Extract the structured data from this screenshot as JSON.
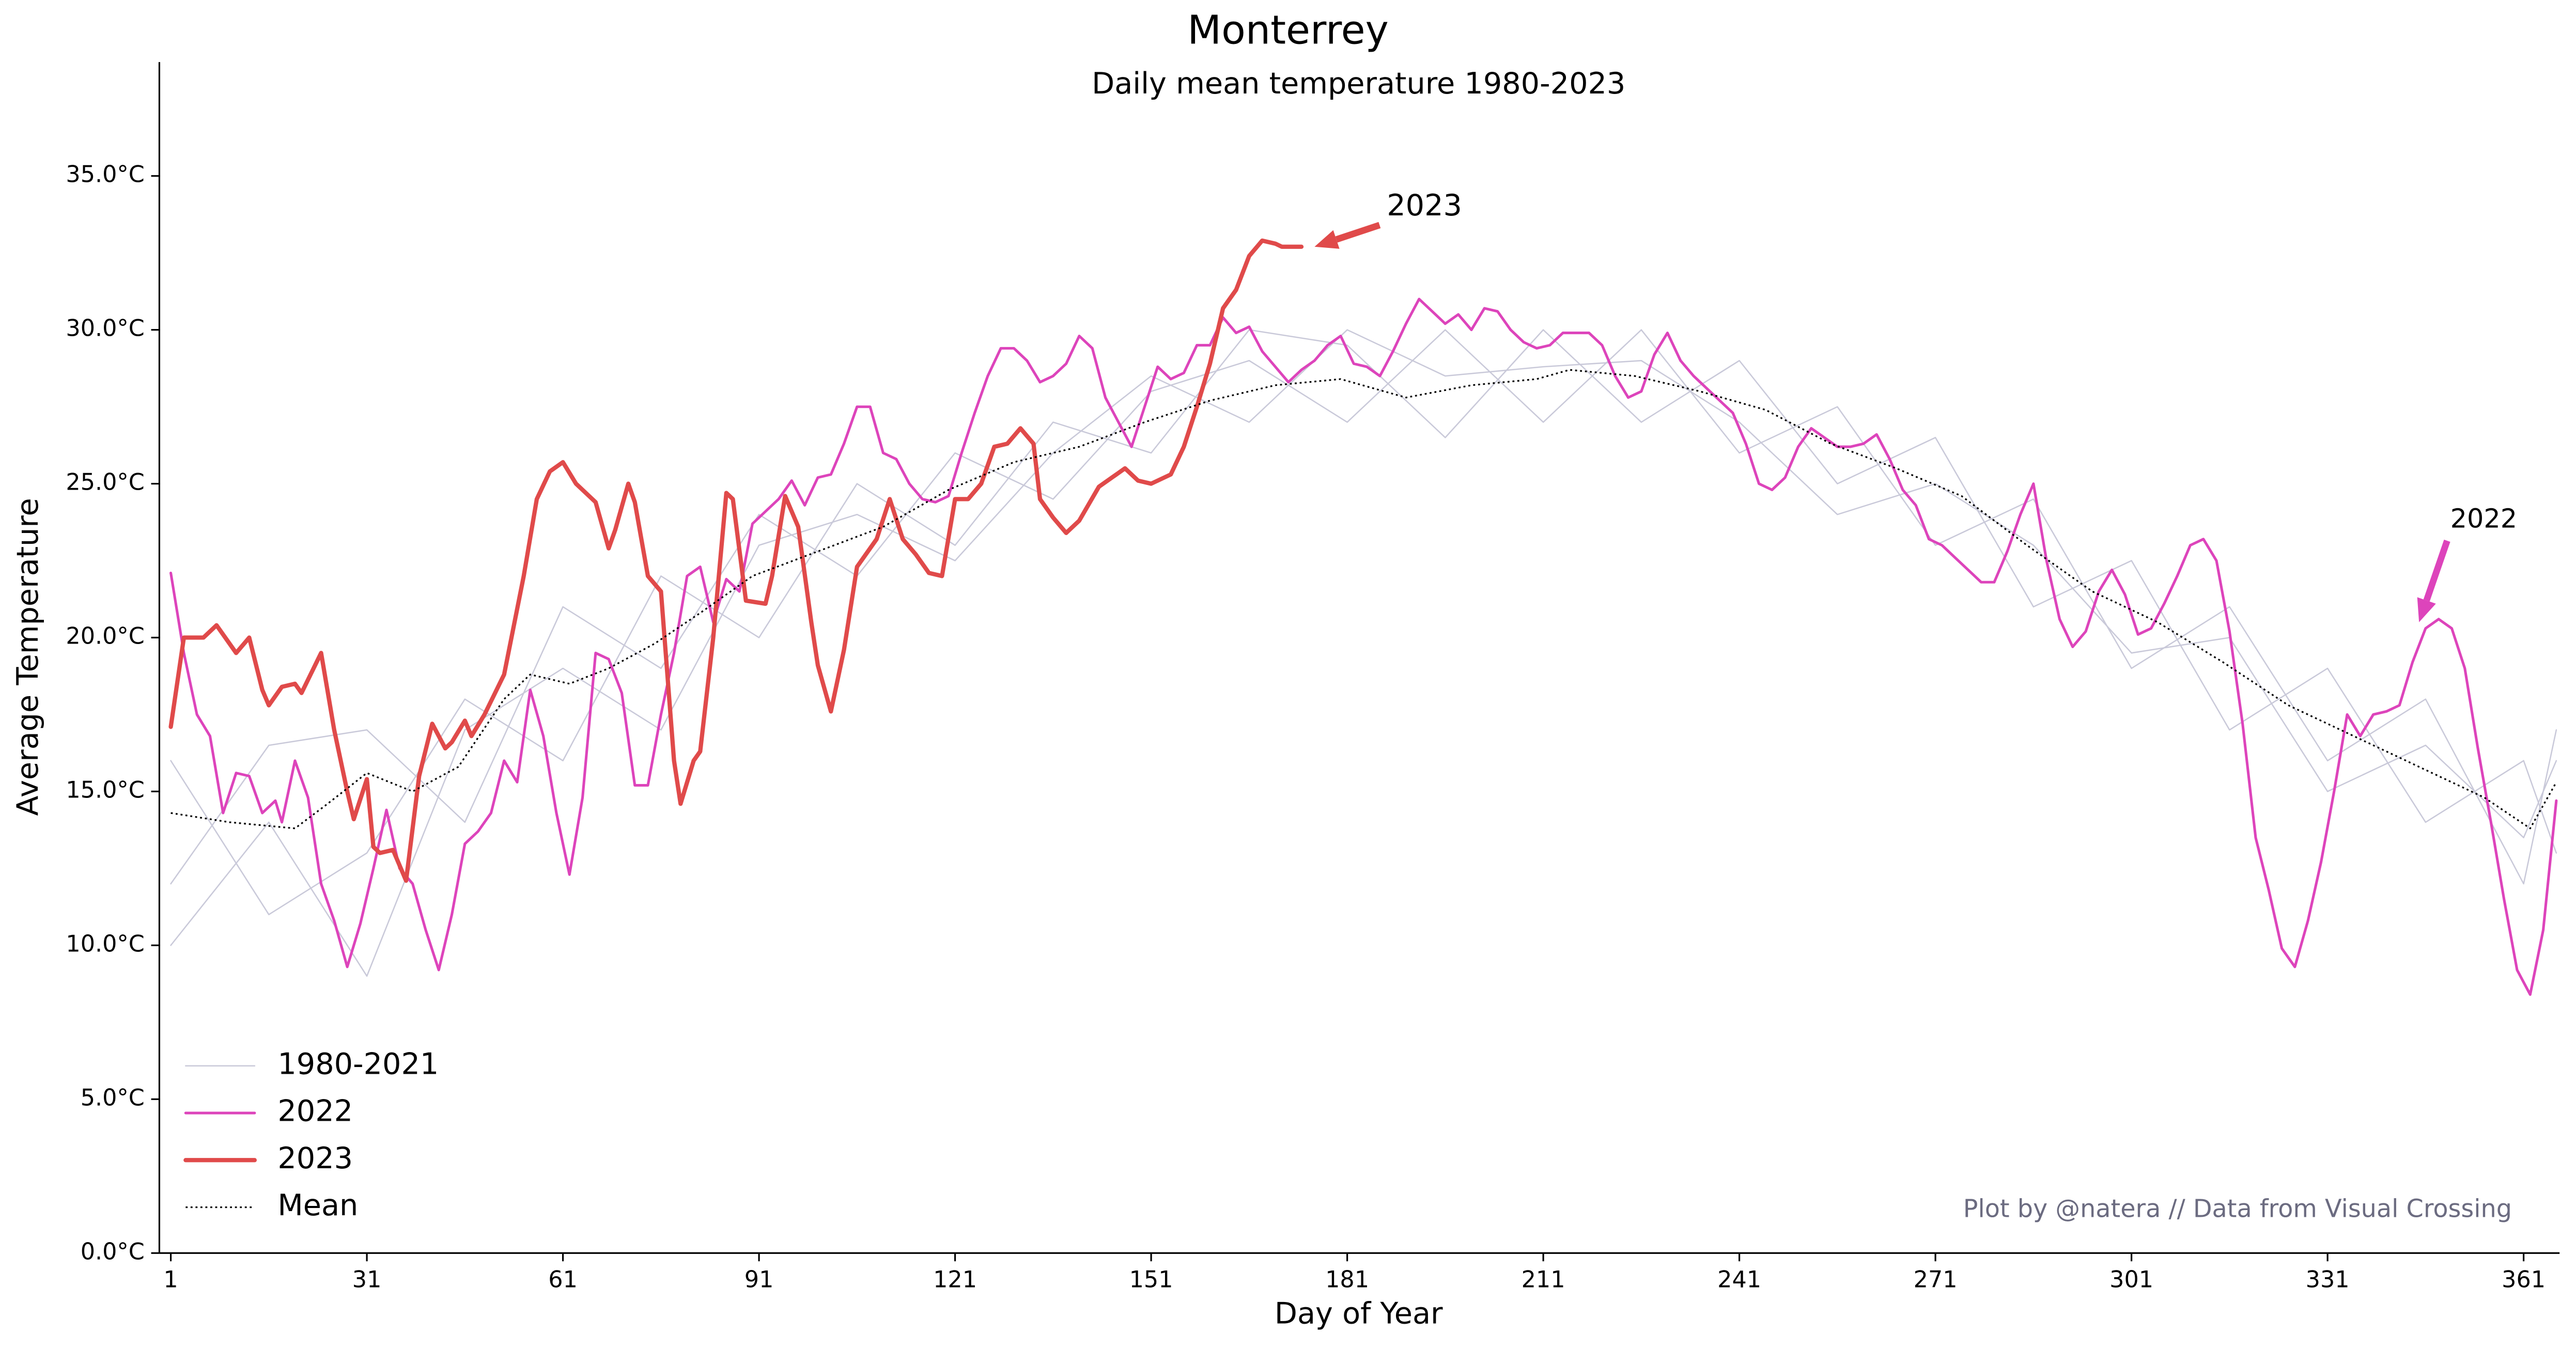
{
  "chart_data": {
    "type": "line",
    "title": "Monterrey",
    "subtitle": "Daily mean temperature 1980-2023",
    "x_label": "Day of Year",
    "y_label": "Average Temperature",
    "footnote": "Plot by @natera // Data from Visual Crossing",
    "legend": "lower left",
    "grid": false,
    "xlim": [
      -0.75,
      366.5
    ],
    "ylim": [
      0,
      38.7
    ],
    "xticks": [
      1,
      31,
      61,
      91,
      121,
      151,
      181,
      211,
      241,
      271,
      301,
      331,
      361
    ],
    "yticks": [
      {
        "value": 0,
        "label": "0.0°C"
      },
      {
        "value": 5,
        "label": "5.0°C"
      },
      {
        "value": 10,
        "label": "10.0°C"
      },
      {
        "value": 15,
        "label": "15.0°C"
      },
      {
        "value": 20,
        "label": "20.0°C"
      },
      {
        "value": 25,
        "label": "25.0°C"
      },
      {
        "value": 30,
        "label": "30.0°C"
      },
      {
        "value": 35,
        "label": "35.0°C"
      }
    ],
    "series": [
      {
        "name": "1980-2021",
        "color": "#c9c9d9",
        "width": 0.8,
        "x": [
          1,
          16,
          31,
          46,
          61,
          76,
          91,
          106,
          121,
          136,
          151,
          166,
          181,
          196,
          211,
          226,
          241,
          256,
          271,
          286,
          301,
          316,
          331,
          346,
          361,
          366
        ],
        "lines": [
          [
            12,
            16.5,
            17,
            14,
            21,
            19,
            24,
            22,
            26,
            24.5,
            28,
            29,
            27,
            30,
            27,
            30,
            26,
            27.5,
            23,
            24.5,
            19,
            21,
            16,
            18,
            12,
            17
          ],
          [
            16,
            11,
            13,
            18,
            16,
            22,
            20,
            25,
            23,
            27,
            26,
            30,
            29.5,
            26.5,
            30,
            27,
            29,
            25,
            26.5,
            21,
            22.5,
            17,
            19,
            14,
            16,
            13
          ],
          [
            10,
            14,
            9,
            17,
            19,
            17,
            23,
            24,
            22.5,
            26,
            28.5,
            27,
            30,
            28.5,
            28.8,
            29,
            27,
            24,
            25,
            23,
            19.5,
            20,
            15,
            16.5,
            13.5,
            16
          ]
        ]
      },
      {
        "name": "2022",
        "color": "#dd44bb",
        "width": 1.6,
        "x": [
          1,
          3,
          5,
          7,
          9,
          11,
          13,
          15,
          17,
          18,
          20,
          22,
          24,
          26,
          28,
          30,
          32,
          34,
          36,
          38,
          40,
          42,
          44,
          46,
          48,
          50,
          52,
          54,
          56,
          58,
          60,
          62,
          64,
          66,
          68,
          70,
          72,
          74,
          76,
          78,
          80,
          82,
          84,
          86,
          88,
          90,
          92,
          94,
          96,
          98,
          100,
          102,
          104,
          106,
          108,
          110,
          112,
          114,
          116,
          118,
          120,
          122,
          124,
          126,
          128,
          130,
          132,
          134,
          136,
          138,
          140,
          142,
          144,
          146,
          148,
          150,
          152,
          154,
          156,
          158,
          160,
          162,
          164,
          166,
          168,
          170,
          172,
          174,
          176,
          178,
          180,
          182,
          184,
          186,
          188,
          190,
          192,
          194,
          196,
          198,
          200,
          202,
          204,
          206,
          208,
          210,
          212,
          214,
          216,
          218,
          220,
          222,
          224,
          226,
          228,
          230,
          232,
          234,
          236,
          238,
          240,
          242,
          244,
          246,
          248,
          250,
          252,
          254,
          256,
          258,
          260,
          262,
          264,
          266,
          268,
          270,
          272,
          274,
          276,
          278,
          280,
          282,
          284,
          286,
          288,
          290,
          292,
          294,
          296,
          298,
          300,
          302,
          304,
          306,
          308,
          310,
          312,
          314,
          316,
          318,
          320,
          322,
          324,
          326,
          328,
          330,
          332,
          334,
          336,
          338,
          340,
          342,
          344,
          346,
          348,
          350,
          352,
          354,
          356,
          358,
          360,
          362,
          364,
          366
        ],
        "values": [
          22.1,
          19.5,
          17.5,
          16.8,
          14.3,
          15.6,
          15.5,
          14.3,
          14.7,
          14.0,
          16.0,
          14.8,
          12.0,
          10.8,
          9.3,
          10.7,
          12.5,
          14.4,
          12.5,
          12.0,
          10.5,
          9.2,
          11.0,
          13.3,
          13.7,
          14.3,
          16.0,
          15.3,
          18.3,
          16.8,
          14.3,
          12.3,
          14.8,
          19.5,
          19.3,
          18.2,
          15.2,
          15.2,
          17.5,
          19.5,
          22.0,
          22.3,
          20.5,
          21.9,
          21.5,
          23.7,
          24.1,
          24.5,
          25.1,
          24.3,
          25.2,
          25.3,
          26.3,
          27.5,
          27.5,
          26.0,
          25.8,
          25.0,
          24.5,
          24.4,
          24.6,
          26.0,
          27.3,
          28.5,
          29.4,
          29.4,
          29.0,
          28.3,
          28.5,
          28.9,
          29.8,
          29.4,
          27.8,
          27.0,
          26.2,
          27.5,
          28.8,
          28.4,
          28.6,
          29.5,
          29.5,
          30.4,
          29.9,
          30.1,
          29.3,
          28.8,
          28.3,
          28.7,
          29.0,
          29.5,
          29.8,
          28.9,
          28.8,
          28.5,
          29.3,
          30.2,
          31.0,
          30.6,
          30.2,
          30.5,
          30.0,
          30.7,
          30.6,
          30.0,
          29.6,
          29.4,
          29.5,
          29.9,
          29.9,
          29.9,
          29.5,
          28.5,
          27.8,
          28.0,
          29.2,
          29.9,
          29.0,
          28.5,
          28.1,
          27.7,
          27.3,
          26.3,
          25.0,
          24.8,
          25.2,
          26.2,
          26.8,
          26.5,
          26.2,
          26.2,
          26.3,
          26.6,
          25.8,
          24.8,
          24.3,
          23.2,
          23.0,
          22.6,
          22.2,
          21.8,
          21.8,
          22.8,
          24.0,
          25.0,
          22.5,
          20.6,
          19.7,
          20.2,
          21.5,
          22.2,
          21.4,
          20.1,
          20.3,
          21.1,
          22.0,
          23.0,
          23.2,
          22.5,
          20.2,
          17.2,
          13.5,
          11.8,
          9.9,
          9.3,
          10.8,
          12.7,
          15.0,
          17.5,
          16.8,
          17.5,
          17.6,
          17.8,
          19.2,
          20.3,
          20.6,
          20.3,
          19.0,
          16.4,
          14.0,
          11.5,
          9.2,
          8.4,
          10.5,
          14.7
        ]
      },
      {
        "name": "2023",
        "color": "#e04a4a",
        "width": 2.6,
        "x": [
          1,
          3,
          6,
          8,
          11,
          13,
          15,
          16,
          18,
          20,
          21,
          24,
          26,
          28,
          29,
          31,
          32,
          33,
          35,
          37,
          39,
          41,
          43,
          44,
          46,
          47,
          49,
          52,
          55,
          57,
          59,
          61,
          63,
          66,
          68,
          69,
          71,
          72,
          74,
          76,
          78,
          79,
          81,
          82,
          84,
          86,
          87,
          89,
          92,
          93,
          95,
          97,
          99,
          100,
          102,
          104,
          106,
          109,
          111,
          113,
          115,
          117,
          119,
          121,
          123,
          125,
          127,
          129,
          131,
          133,
          134,
          136,
          138,
          140,
          143,
          145,
          147,
          149,
          151,
          154,
          156,
          158,
          160,
          162,
          164,
          166,
          168,
          170,
          171,
          174
        ],
        "values": [
          17.1,
          20.0,
          20.0,
          20.4,
          19.5,
          20.0,
          18.3,
          17.8,
          18.4,
          18.5,
          18.2,
          19.5,
          17.0,
          15.0,
          14.1,
          15.4,
          13.2,
          13.0,
          13.1,
          12.1,
          15.5,
          17.2,
          16.4,
          16.6,
          17.3,
          16.8,
          17.5,
          18.8,
          22.0,
          24.5,
          25.4,
          25.7,
          25.0,
          24.4,
          22.9,
          23.5,
          25.0,
          24.4,
          22.0,
          21.5,
          16.0,
          14.6,
          16.0,
          16.3,
          20.0,
          24.7,
          24.5,
          21.2,
          21.1,
          22.0,
          24.6,
          23.6,
          20.5,
          19.1,
          17.6,
          19.6,
          22.3,
          23.2,
          24.5,
          23.2,
          22.7,
          22.1,
          22.0,
          24.5,
          24.5,
          25.0,
          26.2,
          26.3,
          26.8,
          26.3,
          24.5,
          23.9,
          23.4,
          23.8,
          24.9,
          25.2,
          25.5,
          25.1,
          25.0,
          25.3,
          26.2,
          27.5,
          28.9,
          30.7,
          31.3,
          32.4,
          32.9,
          32.8,
          32.7,
          32.7
        ]
      },
      {
        "name": "Mean",
        "color": "#000000",
        "width": 1,
        "dash": "dotted",
        "x": [
          1,
          10,
          20,
          25,
          31,
          38,
          45,
          52,
          56,
          62,
          68,
          75,
          82,
          90,
          100,
          110,
          120,
          130,
          140,
          150,
          160,
          170,
          180,
          190,
          200,
          210,
          215,
          225,
          235,
          245,
          255,
          265,
          275,
          285,
          295,
          305,
          315,
          325,
          335,
          345,
          355,
          362,
          366
        ],
        "values": [
          14.3,
          14.0,
          13.8,
          14.6,
          15.6,
          15.0,
          15.8,
          18.0,
          18.8,
          18.5,
          19.0,
          19.8,
          20.8,
          22.0,
          22.8,
          23.6,
          24.8,
          25.7,
          26.2,
          27.0,
          27.7,
          28.2,
          28.4,
          27.8,
          28.2,
          28.4,
          28.7,
          28.5,
          28.0,
          27.4,
          26.3,
          25.5,
          24.6,
          23.0,
          21.5,
          20.5,
          19.2,
          17.8,
          16.8,
          15.8,
          14.8,
          13.8,
          15.3
        ]
      }
    ],
    "annotations": [
      {
        "text": "2023",
        "x": 176,
        "y": 32.7,
        "color": "#e04a4a"
      },
      {
        "text": "2022",
        "x": 345,
        "y": 20.5,
        "color": "#dd44bb"
      }
    ]
  }
}
